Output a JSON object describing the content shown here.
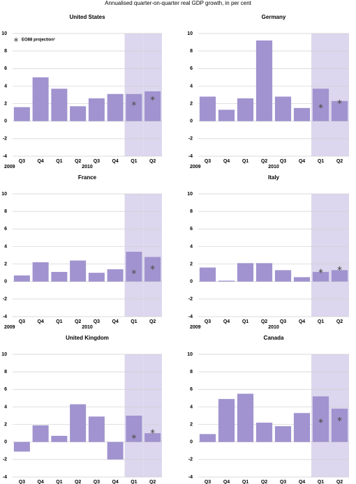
{
  "header": {
    "subtitle": "Annualised quarter-on-quarter real GDP growth, in per cent"
  },
  "chart_data": [
    {
      "type": "bar",
      "title": "United States",
      "projection_name": "EO88 projection¹",
      "categories": [
        "Q3",
        "Q4",
        "Q1",
        "Q2",
        "Q3",
        "Q4",
        "Q1",
        "Q2"
      ],
      "year_labels": [
        "2009",
        null,
        "2010",
        null,
        null,
        null,
        null,
        null
      ],
      "values": [
        1.6,
        5.0,
        3.7,
        1.7,
        2.6,
        3.1,
        3.1,
        3.4
      ],
      "projection": [
        null,
        null,
        null,
        null,
        null,
        null,
        2.0,
        2.6
      ],
      "color": "#a193cf",
      "projection_color": "#555555",
      "shade_color": "#dcd7ee",
      "ylim": [
        -4,
        10
      ],
      "yticks": [
        -4,
        -2,
        0,
        2,
        4,
        6,
        8,
        10
      ],
      "grid": true
    },
    {
      "type": "bar",
      "title": "Germany",
      "categories": [
        "Q3",
        "Q4",
        "Q1",
        "Q2",
        "Q3",
        "Q4",
        "Q1",
        "Q2"
      ],
      "year_labels": [
        "2009",
        null,
        "2010",
        null,
        null,
        null,
        null,
        null
      ],
      "values": [
        2.8,
        1.3,
        2.6,
        9.2,
        2.8,
        1.5,
        3.7,
        2.3
      ],
      "projection": [
        null,
        null,
        null,
        null,
        null,
        null,
        1.7,
        2.2
      ],
      "color": "#a193cf",
      "projection_color": "#555555",
      "shade_color": "#dcd7ee",
      "ylim": [
        -4,
        10
      ],
      "yticks": [
        -4,
        -2,
        0,
        2,
        4,
        6,
        8,
        10
      ],
      "grid": true
    },
    {
      "type": "bar",
      "title": "France",
      "categories": [
        "Q3",
        "Q4",
        "Q1",
        "Q2",
        "Q3",
        "Q4",
        "Q1",
        "Q2"
      ],
      "year_labels": [
        "2009",
        null,
        "2010",
        null,
        null,
        null,
        null,
        null
      ],
      "values": [
        0.7,
        2.2,
        1.1,
        2.4,
        1.0,
        1.4,
        3.4,
        2.8
      ],
      "projection": [
        null,
        null,
        null,
        null,
        null,
        null,
        1.1,
        1.6
      ],
      "color": "#a193cf",
      "projection_color": "#555555",
      "shade_color": "#dcd7ee",
      "ylim": [
        -4,
        10
      ],
      "yticks": [
        -4,
        -2,
        0,
        2,
        4,
        6,
        8,
        10
      ],
      "grid": true
    },
    {
      "type": "bar",
      "title": "Italy",
      "categories": [
        "Q3",
        "Q4",
        "Q1",
        "Q2",
        "Q3",
        "Q4",
        "Q1",
        "Q2"
      ],
      "year_labels": [
        "2009",
        null,
        "2010",
        null,
        null,
        null,
        null,
        null
      ],
      "values": [
        1.6,
        0.1,
        2.1,
        2.1,
        1.3,
        0.5,
        1.1,
        1.3
      ],
      "projection": [
        null,
        null,
        null,
        null,
        null,
        null,
        1.2,
        1.5
      ],
      "color": "#a193cf",
      "projection_color": "#555555",
      "shade_color": "#dcd7ee",
      "ylim": [
        -4,
        10
      ],
      "yticks": [
        -4,
        -2,
        0,
        2,
        4,
        6,
        8,
        10
      ],
      "grid": true
    },
    {
      "type": "bar",
      "title": "United Kingdom",
      "categories": [
        "Q3",
        "Q4",
        "Q1",
        "Q2",
        "Q3",
        "Q4",
        "Q1",
        "Q2"
      ],
      "values": [
        -1.1,
        1.9,
        0.7,
        4.3,
        2.9,
        -2.0,
        3.0,
        1.0
      ],
      "projection": [
        null,
        null,
        null,
        null,
        null,
        null,
        0.6,
        1.2
      ],
      "color": "#a193cf",
      "projection_color": "#555555",
      "shade_color": "#dcd7ee",
      "ylim": [
        -4,
        10
      ],
      "yticks": [
        -4,
        -2,
        0,
        2,
        4,
        6,
        8,
        10
      ],
      "grid": true
    },
    {
      "type": "bar",
      "title": "Canada",
      "categories": [
        "Q3",
        "Q4",
        "Q1",
        "Q2",
        "Q3",
        "Q4",
        "Q1",
        "Q2"
      ],
      "values": [
        0.9,
        4.9,
        5.5,
        2.2,
        1.8,
        3.3,
        5.2,
        3.8
      ],
      "projection": [
        null,
        null,
        null,
        null,
        null,
        null,
        2.4,
        2.6
      ],
      "color": "#a193cf",
      "projection_color": "#555555",
      "shade_color": "#dcd7ee",
      "ylim": [
        -4,
        10
      ],
      "yticks": [
        -4,
        -2,
        0,
        2,
        4,
        6,
        8,
        10
      ],
      "grid": true
    }
  ]
}
